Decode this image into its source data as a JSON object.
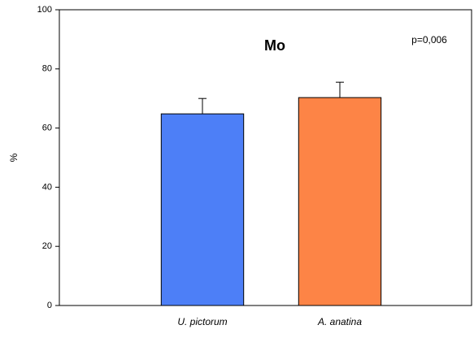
{
  "chart_data": {
    "type": "bar",
    "title": "Mo",
    "annotation": "p=0,006",
    "ylabel": "%",
    "categories": [
      "U. pictorum",
      "A. anatina"
    ],
    "values": [
      64.8,
      70.3
    ],
    "errors": [
      5.2,
      5.2
    ],
    "colors": [
      "#4d7ff7",
      "#fd8446"
    ],
    "ylim": [
      0,
      100
    ],
    "yticks": [
      0,
      20,
      40,
      60,
      80,
      100
    ],
    "grid": false
  }
}
